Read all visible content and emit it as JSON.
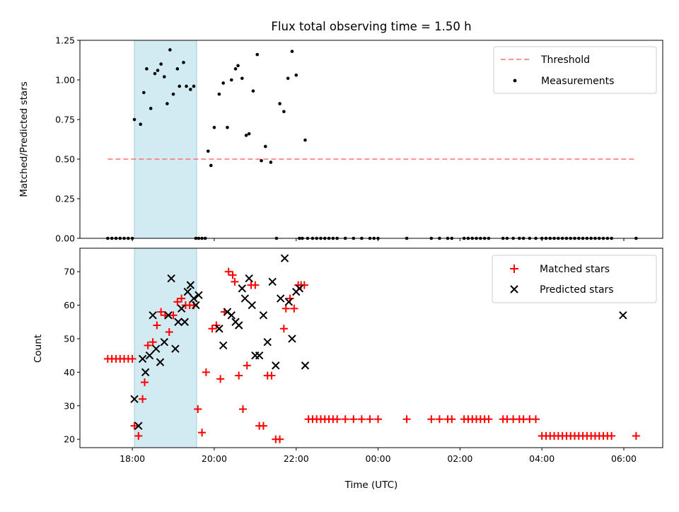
{
  "chart_data": [
    {
      "type": "scatter",
      "title": "Flux total observing time = 1.50 h",
      "xlabel": "",
      "ylabel": "Matched/Predicted stars",
      "ylim": [
        0,
        1.25
      ],
      "yticks": [
        "0.00",
        "0.25",
        "0.50",
        "0.75",
        "1.00",
        "1.25"
      ],
      "x_unit": "hours since 00:00 UTC of first night (values > 24 are next day)",
      "highlight_span": {
        "x_start": 18.05,
        "x_end": 19.57,
        "color": "#add8e6"
      },
      "threshold": {
        "name": "Threshold",
        "y": 0.5,
        "x_start": 17.4,
        "x_end": 30.3,
        "color": "#ff7070"
      },
      "legend": {
        "placement": "top-right",
        "entries": [
          "Threshold",
          "Measurements"
        ]
      },
      "series": [
        {
          "name": "Measurements",
          "color": "#000000",
          "x": [
            17.4,
            17.5,
            17.6,
            17.7,
            17.8,
            17.9,
            18.0,
            18.05,
            18.2,
            18.28,
            18.35,
            18.45,
            18.55,
            18.62,
            18.7,
            18.78,
            18.85,
            18.92,
            19.0,
            19.1,
            19.15,
            19.25,
            19.32,
            19.42,
            19.5,
            19.55,
            19.62,
            19.7,
            19.78,
            19.85,
            19.92,
            20.0,
            20.12,
            20.22,
            20.32,
            20.42,
            20.52,
            20.58,
            20.68,
            20.78,
            20.85,
            20.95,
            21.05,
            21.15,
            21.25,
            21.38,
            21.52,
            21.6,
            21.7,
            21.8,
            21.9,
            22.0,
            22.08,
            22.15,
            22.22,
            22.28,
            22.4,
            22.5,
            22.6,
            22.7,
            22.8,
            22.9,
            23.0,
            23.2,
            23.4,
            23.6,
            23.8,
            23.9,
            24.0,
            24.7,
            25.3,
            25.5,
            25.7,
            25.8,
            26.1,
            26.2,
            26.3,
            26.4,
            26.5,
            26.6,
            26.7,
            27.05,
            27.15,
            27.3,
            27.45,
            27.55,
            27.7,
            27.85,
            28.0,
            28.1,
            28.2,
            28.3,
            28.4,
            28.5,
            28.6,
            28.7,
            28.8,
            28.9,
            29.0,
            29.1,
            29.2,
            29.3,
            29.4,
            29.5,
            29.6,
            29.7,
            30.3
          ],
          "y": [
            0,
            0,
            0,
            0,
            0,
            0,
            0,
            0.75,
            0.72,
            0.92,
            1.07,
            0.82,
            1.04,
            1.06,
            1.1,
            1.02,
            0.85,
            1.19,
            0.91,
            1.07,
            0.96,
            1.11,
            0.96,
            0.94,
            0.96,
            0,
            0,
            0,
            0,
            0.55,
            0.46,
            0.7,
            0.91,
            0.98,
            0.7,
            1.0,
            1.07,
            1.09,
            1.01,
            0.65,
            0.66,
            0.93,
            1.16,
            0.49,
            0.58,
            0.48,
            0,
            0.85,
            0.8,
            1.01,
            1.18,
            1.03,
            0,
            0,
            0.62,
            0,
            0,
            0,
            0,
            0,
            0,
            0,
            0,
            0,
            0,
            0,
            0,
            0,
            0,
            0,
            0,
            0,
            0,
            0,
            0,
            0,
            0,
            0,
            0,
            0,
            0,
            0,
            0,
            0,
            0,
            0,
            0,
            0,
            0,
            0,
            0,
            0,
            0,
            0,
            0,
            0,
            0,
            0,
            0,
            0,
            0,
            0,
            0,
            0,
            0,
            0,
            0
          ]
        }
      ]
    },
    {
      "type": "scatter",
      "title": "",
      "xlabel": "Time (UTC)",
      "ylabel": "Count",
      "ylim": [
        17.5,
        77
      ],
      "yticks": [
        "20",
        "30",
        "40",
        "50",
        "60",
        "70"
      ],
      "xlim": [
        16.72,
        30.95
      ],
      "xticks": [
        "18:00",
        "20:00",
        "22:00",
        "00:00",
        "02:00",
        "04:00",
        "06:00"
      ],
      "x_unit": "hours since 00:00 UTC of first night (values > 24 are next day)",
      "highlight_span": {
        "x_start": 18.05,
        "x_end": 19.57,
        "color": "#add8e6"
      },
      "legend": {
        "placement": "top-right",
        "entries": [
          "Matched stars",
          "Predicted stars"
        ]
      },
      "series": [
        {
          "name": "Matched stars",
          "marker": "plus",
          "color": "#ff0000",
          "x": [
            17.4,
            17.5,
            17.6,
            17.7,
            17.8,
            17.9,
            18.0,
            18.05,
            18.15,
            18.25,
            18.3,
            18.38,
            18.5,
            18.6,
            18.7,
            18.8,
            18.9,
            19.0,
            19.1,
            19.2,
            19.3,
            19.4,
            19.5,
            19.6,
            19.7,
            19.8,
            19.95,
            20.05,
            20.15,
            20.25,
            20.35,
            20.45,
            20.5,
            20.6,
            20.7,
            20.8,
            20.9,
            21.0,
            21.1,
            21.2,
            21.3,
            21.4,
            21.5,
            21.6,
            21.7,
            21.75,
            21.85,
            21.95,
            22.05,
            22.12,
            22.2,
            22.3,
            22.4,
            22.5,
            22.6,
            22.7,
            22.8,
            22.9,
            23.0,
            23.2,
            23.4,
            23.6,
            23.8,
            24.0,
            24.7,
            25.3,
            25.5,
            25.7,
            25.8,
            26.1,
            26.2,
            26.3,
            26.4,
            26.5,
            26.6,
            26.7,
            27.05,
            27.15,
            27.3,
            27.45,
            27.55,
            27.7,
            27.85,
            28.0,
            28.1,
            28.2,
            28.3,
            28.4,
            28.5,
            28.6,
            28.7,
            28.8,
            28.9,
            29.0,
            29.1,
            29.2,
            29.3,
            29.4,
            29.5,
            29.6,
            29.7,
            30.3
          ],
          "y": [
            44,
            44,
            44,
            44,
            44,
            44,
            44,
            24,
            21,
            32,
            37,
            48,
            49,
            54,
            58,
            57,
            52,
            57,
            61,
            62,
            60,
            60,
            60,
            29,
            22,
            40,
            53,
            54,
            38,
            58,
            70,
            69,
            67,
            39,
            29,
            42,
            66,
            66,
            24,
            24,
            39,
            39,
            20,
            20,
            53,
            59,
            62,
            59,
            66,
            66,
            66,
            26,
            26,
            26,
            26,
            26,
            26,
            26,
            26,
            26,
            26,
            26,
            26,
            26,
            26,
            26,
            26,
            26,
            26,
            26,
            26,
            26,
            26,
            26,
            26,
            26,
            26,
            26,
            26,
            26,
            26,
            26,
            26,
            21,
            21,
            21,
            21,
            21,
            21,
            21,
            21,
            21,
            21,
            21,
            21,
            21,
            21,
            21,
            21,
            21,
            21,
            21
          ]
        },
        {
          "name": "Predicted stars",
          "marker": "x",
          "color": "#000000",
          "x": [
            18.05,
            18.15,
            18.25,
            18.32,
            18.42,
            18.5,
            18.58,
            18.68,
            18.78,
            18.88,
            18.95,
            19.05,
            19.12,
            19.2,
            19.28,
            19.35,
            19.42,
            19.5,
            19.55,
            19.62,
            20.12,
            20.22,
            20.32,
            20.42,
            20.52,
            20.6,
            20.68,
            20.75,
            20.85,
            20.92,
            21.0,
            21.1,
            21.2,
            21.3,
            21.42,
            21.5,
            21.62,
            21.72,
            21.82,
            21.9,
            22.0,
            22.08,
            22.22,
            29.98
          ],
          "y": [
            32,
            24,
            44,
            40,
            45,
            57,
            47,
            43,
            49,
            57,
            68,
            47,
            55,
            59,
            55,
            64,
            66,
            62,
            60,
            63,
            53,
            48,
            58,
            57,
            55,
            54,
            65,
            62,
            68,
            60,
            45,
            45,
            57,
            49,
            67,
            42,
            62,
            74,
            61,
            50,
            64,
            65,
            42,
            57
          ]
        }
      ]
    }
  ]
}
